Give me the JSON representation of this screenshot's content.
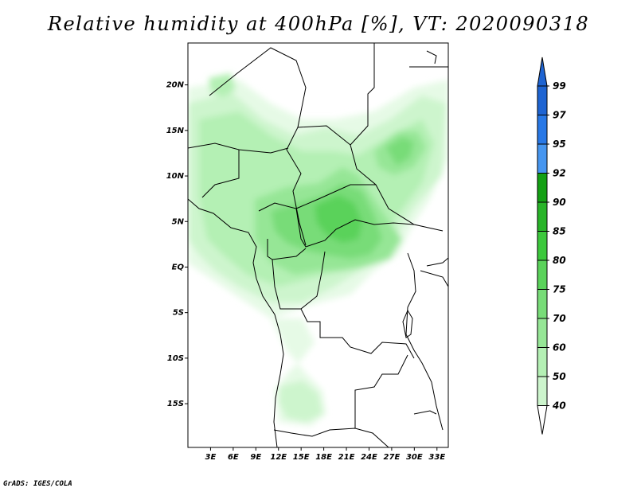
{
  "title": "Relative humidity at 400hPa [%], VT: 2020090318",
  "credit": "GrADS: IGES/COLA",
  "map": {
    "lon_range": [
      0,
      34.5
    ],
    "lat_range": [
      -19.8,
      24.6
    ],
    "lat_ticks": [
      "20N",
      "15N",
      "10N",
      "5N",
      "EQ",
      "5S",
      "10S",
      "15S"
    ],
    "lat_tick_values": [
      20,
      15,
      10,
      5,
      0,
      -5,
      -10,
      -15
    ],
    "lon_ticks": [
      "3E",
      "6E",
      "9E",
      "12E",
      "15E",
      "18E",
      "21E",
      "24E",
      "27E",
      "30E",
      "33E"
    ],
    "lon_tick_values": [
      3,
      6,
      9,
      12,
      15,
      18,
      21,
      24,
      27,
      30,
      33
    ]
  },
  "colorbar": {
    "levels": [
      "40",
      "50",
      "60",
      "70",
      "75",
      "80",
      "85",
      "90",
      "92",
      "95",
      "97",
      "99"
    ],
    "colors": [
      "#e6fae6",
      "#cdf5cd",
      "#b4f0b4",
      "#96e696",
      "#78dc78",
      "#5ad25a",
      "#3cc83c",
      "#28b428",
      "#14a014",
      "#4696f0",
      "#2878e6",
      "#1e64d2"
    ],
    "below_color": "#ffffff",
    "above_color": "#1e64d2"
  }
}
